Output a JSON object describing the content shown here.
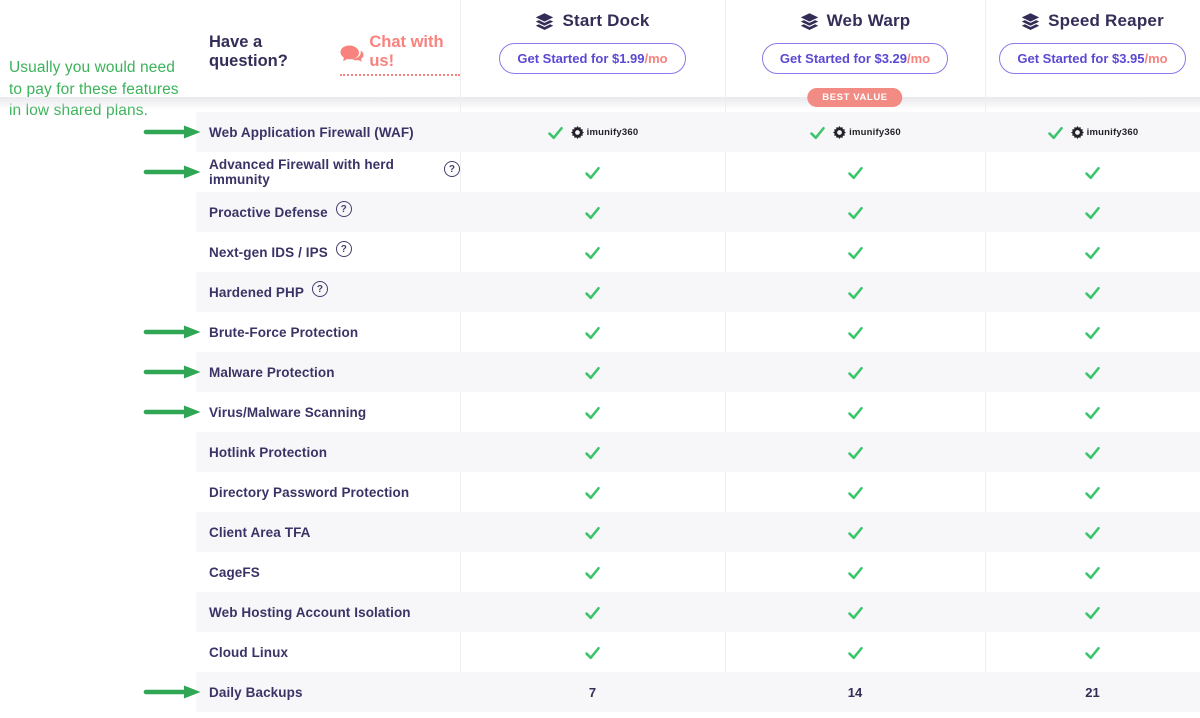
{
  "annotation": {
    "lines": [
      "Usually you would need",
      "to pay for these features",
      "in low shared plans."
    ]
  },
  "header": {
    "question": "Have a question?",
    "chat": "Chat with us!",
    "plans": [
      {
        "name": "Start Dock",
        "cta": "Get Started for $1.99",
        "per": "/mo",
        "badge": ""
      },
      {
        "name": "Web Warp",
        "cta": "Get Started for $3.29",
        "per": "/mo",
        "badge": "BEST VALUE"
      },
      {
        "name": "Speed Reaper",
        "cta": "Get Started for $3.95",
        "per": "/mo",
        "badge": ""
      }
    ]
  },
  "table": {
    "help_symbol": "?",
    "imunify_label": "imunify360",
    "rows": [
      {
        "label": "Web Application Firewall (WAF)",
        "arrow": true,
        "help": false,
        "cells": [
          "imunify360",
          "imunify360",
          "imunify360"
        ]
      },
      {
        "label": "Advanced Firewall with herd immunity",
        "arrow": true,
        "help": true,
        "cells": [
          "check",
          "check",
          "check"
        ]
      },
      {
        "label": "Proactive Defense",
        "arrow": false,
        "help": true,
        "cells": [
          "check",
          "check",
          "check"
        ]
      },
      {
        "label": "Next-gen IDS / IPS",
        "arrow": false,
        "help": true,
        "cells": [
          "check",
          "check",
          "check"
        ]
      },
      {
        "label": "Hardened PHP",
        "arrow": false,
        "help": true,
        "cells": [
          "check",
          "check",
          "check"
        ]
      },
      {
        "label": "Brute-Force Protection",
        "arrow": true,
        "help": false,
        "cells": [
          "check",
          "check",
          "check"
        ]
      },
      {
        "label": "Malware Protection",
        "arrow": true,
        "help": false,
        "cells": [
          "check",
          "check",
          "check"
        ]
      },
      {
        "label": "Virus/Malware Scanning",
        "arrow": true,
        "help": false,
        "cells": [
          "check",
          "check",
          "check"
        ]
      },
      {
        "label": "Hotlink Protection",
        "arrow": false,
        "help": false,
        "cells": [
          "check",
          "check",
          "check"
        ]
      },
      {
        "label": "Directory Password Protection",
        "arrow": false,
        "help": false,
        "cells": [
          "check",
          "check",
          "check"
        ]
      },
      {
        "label": "Client Area TFA",
        "arrow": false,
        "help": false,
        "cells": [
          "check",
          "check",
          "check"
        ]
      },
      {
        "label": "CageFS",
        "arrow": false,
        "help": false,
        "cells": [
          "check",
          "check",
          "check"
        ]
      },
      {
        "label": "Web Hosting Account Isolation",
        "arrow": false,
        "help": false,
        "cells": [
          "check",
          "check",
          "check"
        ]
      },
      {
        "label": "Cloud Linux",
        "arrow": false,
        "help": false,
        "cells": [
          "check",
          "check",
          "check"
        ]
      },
      {
        "label": "Daily Backups",
        "arrow": true,
        "help": false,
        "cells": [
          "7",
          "14",
          "21"
        ]
      }
    ]
  },
  "colors": {
    "note_green": "#3cb35a",
    "arrow_green": "#2fa653",
    "check_green": "#3cc46c",
    "salmon": "#f8827e",
    "purple_dark": "#342d57",
    "purple_accent": "#5b48d3",
    "purple_light": "#8b7ae9",
    "label_purple": "#3a3366",
    "gear_dark": "#232228",
    "stripe": "#f7f7f9",
    "line": "#ededf2"
  }
}
